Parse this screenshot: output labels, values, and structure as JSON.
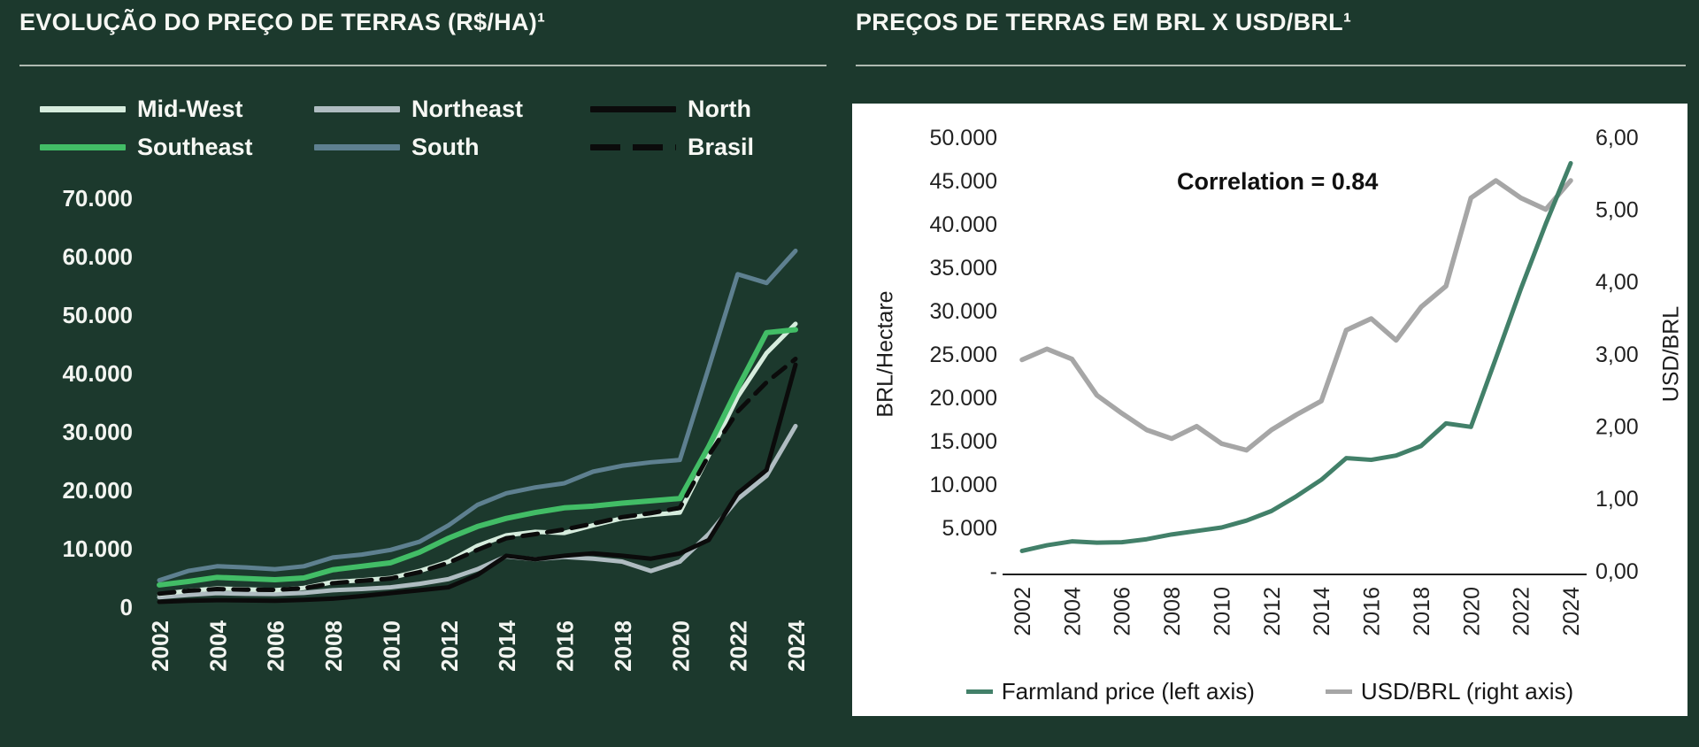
{
  "page": {
    "background": "#1C392D"
  },
  "chart_data": [
    {
      "type": "line",
      "title": "EVOLUÇÃO DO PREÇO DE TERRAS (R$/HA)¹",
      "x": [
        2002,
        2003,
        2004,
        2005,
        2006,
        2007,
        2008,
        2009,
        2010,
        2011,
        2012,
        2013,
        2014,
        2015,
        2016,
        2017,
        2018,
        2019,
        2020,
        2021,
        2022,
        2023,
        2024
      ],
      "x_tick_labels": [
        "2002",
        "2004",
        "2006",
        "2008",
        "2010",
        "2012",
        "2014",
        "2016",
        "2018",
        "2020",
        "2022",
        "2024"
      ],
      "y_ticks": [
        0,
        10000,
        20000,
        30000,
        40000,
        50000,
        60000,
        70000
      ],
      "y_tick_labels": [
        "0",
        "10.000",
        "20.000",
        "30.000",
        "40.000",
        "50.000",
        "60.000",
        "70.000"
      ],
      "ylim": [
        0,
        70000
      ],
      "grid": false,
      "legend_position": "top",
      "draw_order": [
        4,
        1,
        0,
        3,
        2,
        5
      ],
      "series": [
        {
          "name": "Mid-West",
          "color": "#D6ECDD",
          "dash": "solid",
          "width": 5,
          "values": [
            2200,
            2800,
            3200,
            3050,
            2900,
            3300,
            4300,
            4600,
            5000,
            6200,
            7800,
            10500,
            12300,
            12900,
            12700,
            14000,
            15200,
            15800,
            16200,
            26000,
            36000,
            43500,
            48500
          ]
        },
        {
          "name": "Northeast",
          "color": "#AFBCC1",
          "dash": "solid",
          "width": 5,
          "values": [
            1700,
            2100,
            2400,
            2300,
            2250,
            2450,
            2900,
            3100,
            3400,
            4000,
            4800,
            6500,
            8700,
            8200,
            8600,
            8300,
            7800,
            6200,
            7800,
            12500,
            18500,
            22500,
            31000
          ]
        },
        {
          "name": "North",
          "color": "#0B0B0B",
          "dash": "solid",
          "width": 5,
          "values": [
            900,
            1100,
            1200,
            1150,
            1100,
            1250,
            1450,
            1900,
            2400,
            2900,
            3400,
            5500,
            8800,
            8200,
            8800,
            9200,
            8800,
            8300,
            9200,
            11500,
            19500,
            23500,
            41500
          ]
        },
        {
          "name": "Southeast",
          "color": "#42BD66",
          "dash": "solid",
          "width": 6,
          "values": [
            3800,
            4400,
            5100,
            4900,
            4700,
            5000,
            6400,
            7000,
            7600,
            9400,
            11800,
            13800,
            15200,
            16200,
            17000,
            17300,
            17800,
            18200,
            18600,
            27500,
            37500,
            47000,
            47500
          ]
        },
        {
          "name": "South",
          "color": "#5E8090",
          "dash": "solid",
          "width": 5,
          "values": [
            4600,
            6200,
            7000,
            6800,
            6500,
            7000,
            8500,
            9000,
            9800,
            11200,
            14000,
            17500,
            19500,
            20500,
            21200,
            23200,
            24200,
            24800,
            25200,
            41000,
            57000,
            55500,
            61000
          ]
        },
        {
          "name": "Brasil",
          "color": "#0B0B0B",
          "dash": "dashed",
          "width": 5,
          "values": [
            2300,
            2800,
            3100,
            3000,
            2950,
            3250,
            4100,
            4500,
            4900,
            6000,
            7600,
            9800,
            11800,
            12500,
            13300,
            14300,
            15400,
            16100,
            17000,
            26000,
            33500,
            38500,
            42500
          ]
        }
      ]
    },
    {
      "type": "line",
      "title": "PREÇOS DE TERRAS EM BRL X USD/BRL¹",
      "annotation": "Correlation = 0.84",
      "x": [
        2002,
        2003,
        2004,
        2005,
        2006,
        2007,
        2008,
        2009,
        2010,
        2011,
        2012,
        2013,
        2014,
        2015,
        2016,
        2017,
        2018,
        2019,
        2020,
        2021,
        2022,
        2023,
        2024
      ],
      "x_tick_labels": [
        "2002",
        "2004",
        "2006",
        "2008",
        "2010",
        "2012",
        "2014",
        "2016",
        "2018",
        "2020",
        "2022",
        "2024"
      ],
      "left_axis": {
        "label": "BRL/Hectare",
        "lim": [
          0,
          50000
        ],
        "ticks": [
          0,
          5000,
          10000,
          15000,
          20000,
          25000,
          30000,
          35000,
          40000,
          45000,
          50000
        ],
        "tick_labels": [
          "-",
          "5.000",
          "10.000",
          "15.000",
          "20.000",
          "25.000",
          "30.000",
          "35.000",
          "40.000",
          "45.000",
          "50.000"
        ]
      },
      "right_axis": {
        "label": "USD/BRL",
        "lim": [
          0,
          6
        ],
        "ticks": [
          0,
          1,
          2,
          3,
          4,
          5,
          6
        ],
        "tick_labels": [
          "0,00",
          "1,00",
          "2,00",
          "3,00",
          "4,00",
          "5,00",
          "6,00"
        ]
      },
      "grid": false,
      "legend_position": "bottom",
      "draw_order": [
        1,
        0
      ],
      "series": [
        {
          "name": "Farmland price (left axis)",
          "axis": "left",
          "color": "#428069",
          "dash": "solid",
          "width": 5,
          "values": [
            2300,
            2950,
            3400,
            3250,
            3300,
            3650,
            4200,
            4600,
            5000,
            5800,
            6900,
            8600,
            10500,
            13000,
            12800,
            13300,
            14400,
            17000,
            16600,
            24500,
            32500,
            40000,
            47000
          ]
        },
        {
          "name": "USD/BRL (right axis)",
          "axis": "right",
          "color": "#A6A6A6",
          "dash": "solid",
          "width": 5.5,
          "values": [
            2.92,
            3.07,
            2.93,
            2.43,
            2.18,
            1.95,
            1.83,
            2.0,
            1.76,
            1.67,
            1.95,
            2.16,
            2.35,
            3.33,
            3.49,
            3.19,
            3.65,
            3.94,
            5.16,
            5.4,
            5.16,
            5.0,
            5.4
          ]
        }
      ]
    }
  ]
}
